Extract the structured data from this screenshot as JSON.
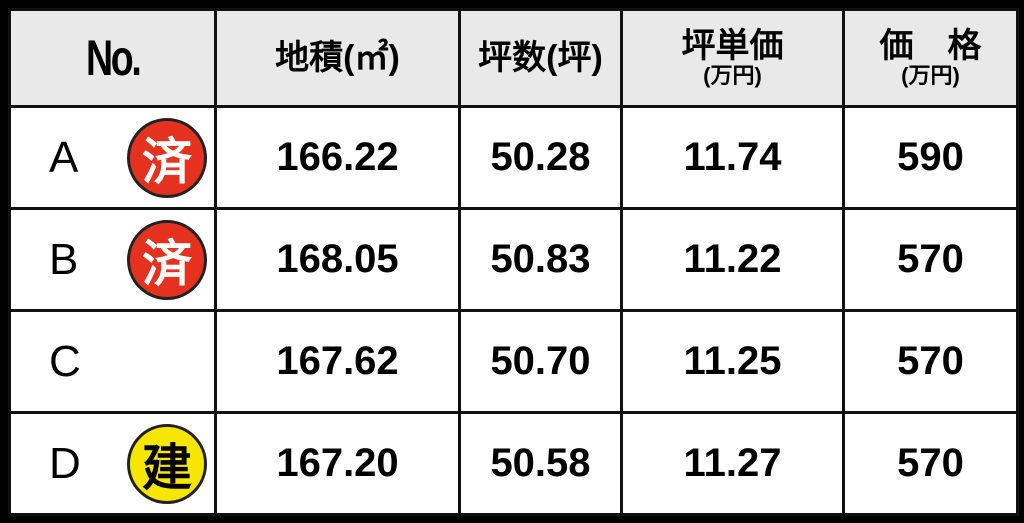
{
  "headers": [
    {
      "main": "No.",
      "sub": ""
    },
    {
      "main": "地積(㎡)",
      "sub": ""
    },
    {
      "main": "坪数(坪)",
      "sub": ""
    },
    {
      "main": "坪単価",
      "sub": "(万円)"
    },
    {
      "main": "価　格",
      "sub": "(万円)"
    }
  ],
  "rows": [
    {
      "no": "A",
      "badge": "済",
      "badge_color": "#e5321f",
      "badge_text_color": "#ffffff",
      "area": "166.22",
      "tsubo": "50.28",
      "unit_price": "11.74",
      "price": "590"
    },
    {
      "no": "B",
      "badge": "済",
      "badge_color": "#e5321f",
      "badge_text_color": "#ffffff",
      "area": "168.05",
      "tsubo": "50.83",
      "unit_price": "11.22",
      "price": "570"
    },
    {
      "no": "C",
      "badge": "",
      "area": "167.62",
      "tsubo": "50.70",
      "unit_price": "11.25",
      "price": "570"
    },
    {
      "no": "D",
      "badge": "建",
      "badge_color": "#f7e600",
      "badge_text_color": "#000000",
      "area": "167.20",
      "tsubo": "50.58",
      "unit_price": "11.27",
      "price": "570"
    }
  ]
}
